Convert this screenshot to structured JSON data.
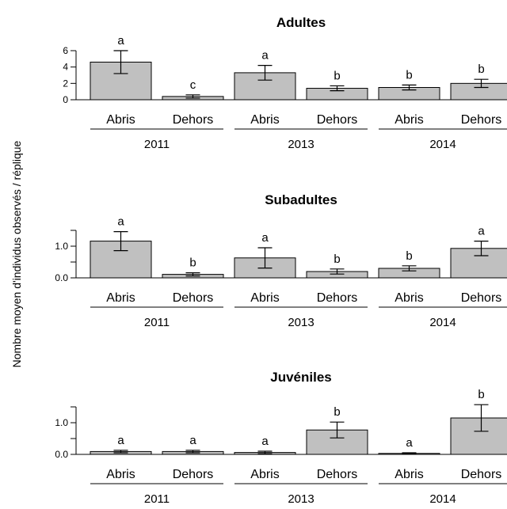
{
  "figure": {
    "ylabel": "Nombre moyen d'individus observés / réplique"
  },
  "chart_data": [
    {
      "type": "bar",
      "title": "Adultes",
      "ylabel": "Nombre moyen d'individus observés / réplique",
      "xlabel": "",
      "ylim": [
        0,
        6
      ],
      "yticks": [
        0,
        2,
        4,
        6
      ],
      "ytick_labels": [
        "0",
        "2",
        "4",
        "6"
      ],
      "groups": [
        "2011",
        "2013",
        "2014"
      ],
      "categories": [
        "Abris",
        "Dehors",
        "Abris",
        "Dehors",
        "Abris",
        "Dehors"
      ],
      "values": [
        4.6,
        0.4,
        3.3,
        1.4,
        1.5,
        2.0
      ],
      "error": [
        1.4,
        0.2,
        0.9,
        0.3,
        0.3,
        0.5
      ],
      "letters": [
        "a",
        "c",
        "a",
        "b",
        "b",
        "b"
      ],
      "bar_color": "#c0c0c0",
      "grid": false
    },
    {
      "type": "bar",
      "title": "Subadultes",
      "ylabel": "Nombre moyen d'individus observés / réplique",
      "xlabel": "",
      "ylim": [
        0,
        1.5
      ],
      "yticks": [
        0,
        0.5,
        1.0,
        1.5
      ],
      "ytick_labels": [
        "0.0",
        "",
        "1.0",
        ""
      ],
      "groups": [
        "2011",
        "2013",
        "2014"
      ],
      "categories": [
        "Abris",
        "Dehors",
        "Abris",
        "Dehors",
        "Abris",
        "Dehors"
      ],
      "values": [
        1.16,
        0.11,
        0.63,
        0.2,
        0.3,
        0.93
      ],
      "error": [
        0.3,
        0.05,
        0.32,
        0.08,
        0.08,
        0.23
      ],
      "letters": [
        "a",
        "b",
        "a",
        "b",
        "b",
        "a"
      ],
      "bar_color": "#c0c0c0",
      "grid": false
    },
    {
      "type": "bar",
      "title": "Juvéniles",
      "ylabel": "Nombre moyen d'individus observés / réplique",
      "xlabel": "",
      "ylim": [
        0,
        1.5
      ],
      "yticks": [
        0,
        0.5,
        1.0,
        1.5
      ],
      "ytick_labels": [
        "0.0",
        "",
        "1.0",
        ""
      ],
      "groups": [
        "2011",
        "2013",
        "2014"
      ],
      "categories": [
        "Abris",
        "Dehors",
        "Abris",
        "Dehors",
        "Abris",
        "Dehors"
      ],
      "values": [
        0.09,
        0.09,
        0.06,
        0.77,
        0.03,
        1.15
      ],
      "error": [
        0.04,
        0.04,
        0.04,
        0.25,
        0.02,
        0.42
      ],
      "letters": [
        "a",
        "a",
        "a",
        "b",
        "a",
        "b"
      ],
      "bar_color": "#c0c0c0",
      "grid": false
    }
  ]
}
